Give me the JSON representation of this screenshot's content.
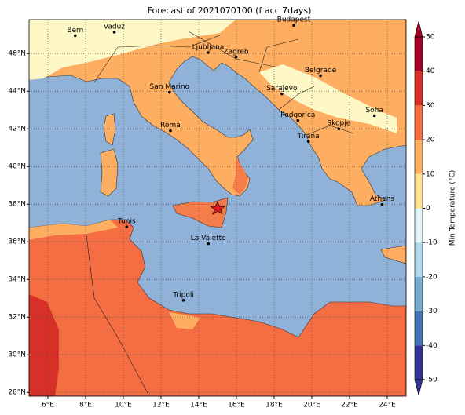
{
  "chart_data": {
    "type": "map",
    "title": "Forecast of 2021070100 (f acc 7days)",
    "xlim": [
      5,
      25
    ],
    "ylim": [
      27.8,
      47.8
    ],
    "xticks": [
      {
        "value": 6,
        "label": "6°E"
      },
      {
        "value": 8,
        "label": "8°E"
      },
      {
        "value": 10,
        "label": "10°E"
      },
      {
        "value": 12,
        "label": "12°E"
      },
      {
        "value": 14,
        "label": "14°E"
      },
      {
        "value": 16,
        "label": "16°E"
      },
      {
        "value": 18,
        "label": "18°E"
      },
      {
        "value": 20,
        "label": "20°E"
      },
      {
        "value": 22,
        "label": "22°E"
      },
      {
        "value": 24,
        "label": "24°E"
      }
    ],
    "yticks": [
      {
        "value": 28,
        "label": "28°N"
      },
      {
        "value": 30,
        "label": "30°N"
      },
      {
        "value": 32,
        "label": "32°N"
      },
      {
        "value": 34,
        "label": "34°N"
      },
      {
        "value": 36,
        "label": "36°N"
      },
      {
        "value": 38,
        "label": "38°N"
      },
      {
        "value": 40,
        "label": "40°N"
      },
      {
        "value": 42,
        "label": "42°N"
      },
      {
        "value": 44,
        "label": "44°N"
      },
      {
        "value": 46,
        "label": "46°N"
      }
    ],
    "grid": true,
    "cities": [
      "Bern",
      "Vaduz",
      "Budapest",
      "Ljubljana",
      "Zagreb",
      "Belgrade",
      "Sarajevo",
      "San Marino",
      "Roma",
      "Podgorica",
      "Skopje",
      "Sofia",
      "Tirana",
      "Tunis",
      "La Valette",
      "Athens",
      "Tripoli"
    ],
    "colorbar": {
      "label": "Min Temperature (°C)",
      "ticks": [
        50,
        40,
        30,
        20,
        10,
        0,
        -10,
        -20,
        -30,
        -40,
        -50
      ],
      "colors": [
        "#a50026",
        "#d73027",
        "#f46d43",
        "#fdae61",
        "#fee090",
        "#e0f3f8",
        "#abd9e9",
        "#74add1",
        "#4575b4",
        "#313695"
      ]
    }
  }
}
